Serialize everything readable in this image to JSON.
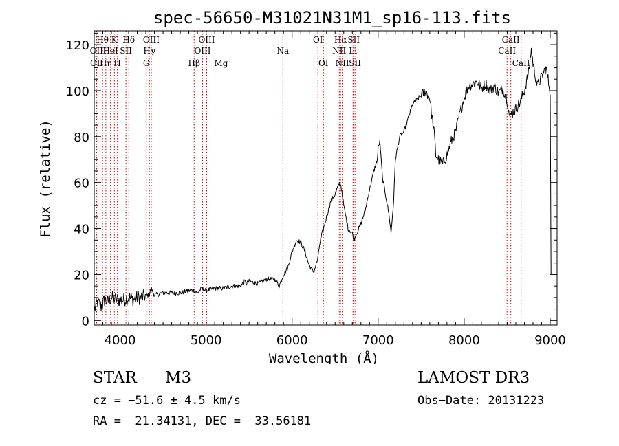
{
  "chart_data": {
    "type": "line",
    "title": "spec-56650-M31021N31M1_sp16-113.fits",
    "xlabel": "Wavelength (Å)",
    "ylabel": "Flux (relative)",
    "xlim": [
      3700,
      9080
    ],
    "ylim": [
      -2,
      126
    ],
    "xticks": [
      4000,
      5000,
      6000,
      7000,
      8000,
      9000
    ],
    "yticks": [
      0,
      20,
      40,
      60,
      80,
      100,
      120
    ],
    "grid": false,
    "line_color": "#000000",
    "marker_color": "#cc0000",
    "series": [
      {
        "name": "spectrum",
        "x": [
          3705,
          3740,
          3780,
          3820,
          3860,
          3900,
          3950,
          4000,
          4050,
          4100,
          4150,
          4200,
          4250,
          4300,
          4340,
          4360,
          4400,
          4500,
          4600,
          4700,
          4800,
          4860,
          4900,
          4950,
          5000,
          5100,
          5200,
          5300,
          5400,
          5450,
          5470,
          5500,
          5600,
          5700,
          5800,
          5850,
          5900,
          5950,
          6000,
          6050,
          6100,
          6150,
          6180,
          6200,
          6250,
          6300,
          6320,
          6350,
          6380,
          6400,
          6450,
          6500,
          6530,
          6560,
          6580,
          6600,
          6620,
          6650,
          6700,
          6720,
          6750,
          6800,
          6850,
          6900,
          6950,
          6990,
          7000,
          7020,
          7050,
          7080,
          7100,
          7130,
          7150,
          7180,
          7200,
          7250,
          7300,
          7350,
          7400,
          7450,
          7500,
          7550,
          7600,
          7620,
          7650,
          7670,
          7700,
          7750,
          7800,
          7850,
          7900,
          7950,
          8000,
          8050,
          8100,
          8150,
          8200,
          8250,
          8300,
          8350,
          8400,
          8450,
          8500,
          8530,
          8550,
          8600,
          8650,
          8700,
          8750,
          8780,
          8800,
          8850,
          8900,
          8950,
          9000,
          9010
        ],
        "y": [
          5,
          8,
          6,
          9,
          8,
          10,
          9,
          9,
          9,
          10,
          9,
          10,
          10,
          11,
          11,
          14,
          11,
          12,
          12,
          12,
          13,
          13,
          12,
          14,
          13,
          14,
          14,
          15,
          15,
          17,
          16,
          17,
          16,
          18,
          18,
          15,
          20,
          23,
          30,
          35,
          34,
          30,
          26,
          24,
          21,
          27,
          33,
          38,
          42,
          45,
          52,
          55,
          58,
          60,
          56,
          50,
          46,
          40,
          38,
          35,
          38,
          42,
          48,
          57,
          65,
          70,
          75,
          78,
          62,
          56,
          52,
          45,
          38,
          52,
          70,
          80,
          82,
          88,
          94,
          96,
          98,
          100,
          97,
          90,
          82,
          72,
          70,
          68,
          72,
          78,
          82,
          90,
          97,
          102,
          103,
          104,
          101,
          103,
          100,
          102,
          99,
          101,
          96,
          88,
          90,
          92,
          95,
          100,
          108,
          118,
          112,
          102,
          106,
          110,
          100,
          20
        ]
      }
    ],
    "line_markers": [
      {
        "label": "Hθ",
        "x": 3797,
        "row": 1
      },
      {
        "label": "OII",
        "x": 3727,
        "row": 2
      },
      {
        "label": "OII",
        "x": 3729,
        "row": 3
      },
      {
        "label": "Hη",
        "x": 3835,
        "row": 3
      },
      {
        "label": "K",
        "x": 3934,
        "row": 1
      },
      {
        "label": "HeI",
        "x": 3889,
        "row": 2
      },
      {
        "label": "H",
        "x": 3969,
        "row": 3
      },
      {
        "label": "Hδ",
        "x": 4102,
        "row": 1
      },
      {
        "label": "SII",
        "x": 4069,
        "row": 2
      },
      {
        "label": "OIII",
        "x": 4363,
        "row": 1
      },
      {
        "label": "Hγ",
        "x": 4341,
        "row": 2
      },
      {
        "label": "G",
        "x": 4305,
        "row": 3
      },
      {
        "label": "Hβ",
        "x": 4861,
        "row": 3
      },
      {
        "label": "OIII",
        "x": 5007,
        "row": 1
      },
      {
        "label": "OIII",
        "x": 4959,
        "row": 2
      },
      {
        "label": "Mg",
        "x": 5175,
        "row": 3
      },
      {
        "label": "Na",
        "x": 5893,
        "row": 2
      },
      {
        "label": "OI",
        "x": 6300,
        "row": 1
      },
      {
        "label": "OI",
        "x": 6364,
        "row": 3
      },
      {
        "label": "Hα",
        "x": 6563,
        "row": 1
      },
      {
        "label": "NII",
        "x": 6548,
        "row": 2
      },
      {
        "label": "NII",
        "x": 6583,
        "row": 3
      },
      {
        "label": "SII",
        "x": 6716,
        "row": 1
      },
      {
        "label": "Li",
        "x": 6708,
        "row": 2
      },
      {
        "label": "SII",
        "x": 6731,
        "row": 3
      },
      {
        "label": "CaII",
        "x": 8542,
        "row": 1
      },
      {
        "label": "CaII",
        "x": 8498,
        "row": 2
      },
      {
        "label": "CaII",
        "x": 8662,
        "row": 3
      }
    ]
  },
  "info": {
    "class_label": "STAR",
    "subclass": "M3",
    "survey": "LAMOST DR3",
    "cz_text": "cz = −51.6 ± 4.5 km/s",
    "obs_date": "Obs−Date: 20131223",
    "coords": "RA =  21.34131, DEC =  33.56181"
  }
}
